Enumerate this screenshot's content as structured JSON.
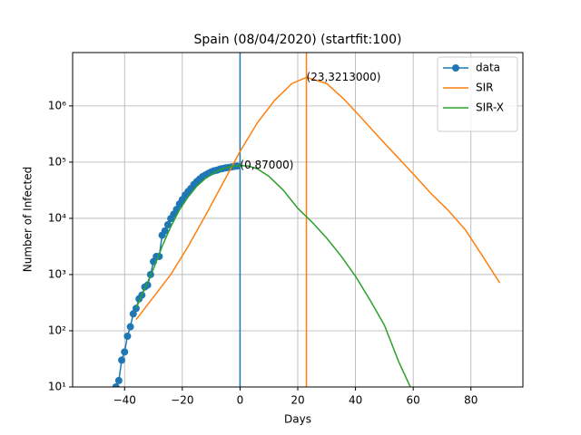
{
  "chart_data": {
    "type": "line",
    "title": "Spain (08/04/2020) (startfit:100)",
    "x_label": "Days",
    "y_label": "Number of Infected",
    "xlim": [
      -58,
      98
    ],
    "ylim": [
      10,
      8900000
    ],
    "y_scale": "log",
    "grid": true,
    "legend": "upper right",
    "xticks": [
      {
        "value": -40,
        "label": "−40"
      },
      {
        "value": -20,
        "label": "−20"
      },
      0,
      20,
      40,
      60,
      80
    ],
    "yticks": [
      {
        "value": 10,
        "label": "10¹"
      },
      {
        "value": 100,
        "label": "10²"
      },
      {
        "value": 1000,
        "label": "10³"
      },
      {
        "value": 10000,
        "label": "10⁴"
      },
      {
        "value": 100000,
        "label": "10⁵"
      },
      {
        "value": 1000000,
        "label": "10⁶"
      }
    ],
    "series": [
      {
        "name": "data",
        "color": "#1f77b4",
        "marker": "o",
        "x": [
          -43,
          -42,
          -41,
          -40,
          -39,
          -38,
          -37,
          -36,
          -35,
          -34,
          -33,
          -32,
          -31,
          -30,
          -29,
          -28,
          -27,
          -26,
          -25,
          -24,
          -23,
          -22,
          -21,
          -20,
          -19,
          -18,
          -17,
          -16,
          -15,
          -14,
          -13,
          -12,
          -11,
          -10,
          -9,
          -8,
          -7,
          -6,
          -5,
          -4,
          -3,
          -2,
          -1
        ],
        "values": [
          10,
          13,
          30,
          42,
          80,
          118,
          200,
          250,
          370,
          430,
          600,
          650,
          1000,
          1700,
          2100,
          2100,
          5000,
          6000,
          7700,
          9900,
          11800,
          14400,
          18000,
          21500,
          26000,
          30000,
          34000,
          40000,
          45000,
          50000,
          55000,
          59000,
          63000,
          67000,
          70000,
          72000,
          75000,
          77000,
          79000,
          80000,
          82000,
          84000,
          85000
        ]
      },
      {
        "name": "SIR",
        "color": "#ff7f0e",
        "x": [
          -36,
          -30,
          -24,
          -18,
          -12,
          -6,
          0,
          6,
          12,
          18,
          23,
          30,
          36,
          42,
          48,
          54,
          60,
          66,
          72,
          78,
          84,
          90
        ],
        "values": [
          158,
          398,
          1000,
          3160,
          11200,
          41700,
          155000,
          501000,
          1260000,
          2510000,
          3213000,
          2510000,
          1320000,
          617000,
          282000,
          132000,
          61700,
          28200,
          14100,
          6310,
          2140,
          708
        ]
      },
      {
        "name": "SIR-X",
        "color": "#2ca02c",
        "x": [
          -36,
          -33,
          -30,
          -27,
          -24,
          -21,
          -18,
          -15,
          -12,
          -9,
          -6,
          -3,
          0,
          3,
          6,
          10,
          15,
          20,
          25,
          30,
          35,
          40,
          45,
          50,
          55,
          59
        ],
        "values": [
          251,
          562,
          1260,
          3160,
          7080,
          14100,
          24000,
          37200,
          51300,
          64600,
          75900,
          84100,
          87100,
          85100,
          75900,
          56200,
          31600,
          15100,
          8510,
          4470,
          2140,
          933,
          355,
          126,
          28,
          10
        ]
      }
    ],
    "vlines": [
      {
        "x": 0,
        "color": "#1f77b4"
      },
      {
        "x": 23,
        "color": "#ff7f0e"
      }
    ],
    "annotations": [
      {
        "text": "(0,87000)",
        "x": 0,
        "y": 87000
      },
      {
        "text": "(23,3213000)",
        "x": 23,
        "y": 3213000
      }
    ]
  }
}
